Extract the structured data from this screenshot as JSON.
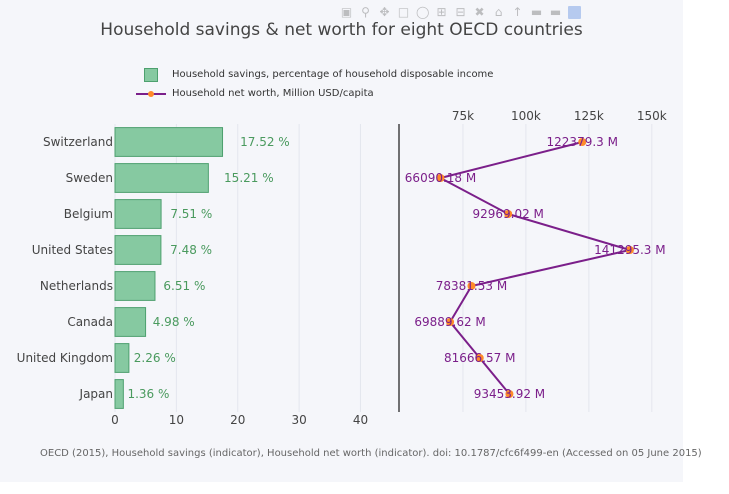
{
  "title": "Household savings & net worth for eight OECD countries",
  "source_note": "OECD (2015), Household savings (indicator), Household net worth (indicator). doi: 10.1787/cfc6f499-en (Accessed on 05 June 2015)",
  "legend": [
    {
      "label": "Household savings, percentage of household disposable income",
      "kind": "bar"
    },
    {
      "label": "Household net worth, Million USD/capita",
      "kind": "line"
    }
  ],
  "colors": {
    "bar_fill": "#86c9a1",
    "bar_stroke": "#4da06e",
    "bar_label": "#4a9a5e",
    "line": "#7b1f8a",
    "marker": "#ff8a2a",
    "line_label": "#7b1f8a"
  },
  "modebar_icons": [
    "camera-icon",
    "zoom-icon",
    "pan-icon",
    "select-box-icon",
    "lasso-icon",
    "zoom-in-icon",
    "zoom-out-icon",
    "autoscale-icon",
    "reset-axes-icon",
    "spike-lines-icon",
    "hover-closest-icon",
    "hover-compare-icon",
    "plotly-logo-icon"
  ],
  "chart_data": [
    {
      "type": "bar",
      "orientation": "horizontal",
      "series_name": "Household savings, percentage of household disposable income",
      "categories": [
        "Japan",
        "United Kingdom",
        "Canada",
        "Netherlands",
        "United States",
        "Belgium",
        "Sweden",
        "Switzerland"
      ],
      "values": [
        1.3602,
        2.2639,
        4.983,
        6.5141,
        7.4812,
        7.511,
        15.2141,
        17.5227
      ],
      "data_labels": [
        "1.36 %",
        "2.26 %",
        "4.98 %",
        "6.51 %",
        "7.48 %",
        "7.51 %",
        "15.21 %",
        "17.52 %"
      ],
      "xlim": [
        0,
        44
      ],
      "x_ticks": [
        0,
        10,
        20,
        30,
        40
      ],
      "x_tick_labels": [
        "0",
        "10",
        "20",
        "30",
        "40"
      ],
      "grid": true
    },
    {
      "type": "line",
      "series_name": "Household net worth, Million USD/capita",
      "categories": [
        "Japan",
        "United Kingdom",
        "Canada",
        "Netherlands",
        "United States",
        "Belgium",
        "Sweden",
        "Switzerland"
      ],
      "values": [
        93453.92,
        81666.57,
        69889.62,
        78381.53,
        141295.3,
        92969.02,
        66090.18,
        122379.3
      ],
      "data_labels": [
        "93453.92 M",
        "81666.57 M",
        "69889.62 M",
        "78381.53 M",
        "141295.3 M",
        "92969.02 M",
        "66090.18 M",
        "122379.3 M"
      ],
      "xlim": [
        50000,
        160000
      ],
      "x_ticks": [
        75000,
        100000,
        125000,
        150000
      ],
      "x_tick_labels": [
        "75k",
        "100k",
        "125k",
        "150k"
      ],
      "x_axis_position": "top",
      "grid": true
    }
  ]
}
